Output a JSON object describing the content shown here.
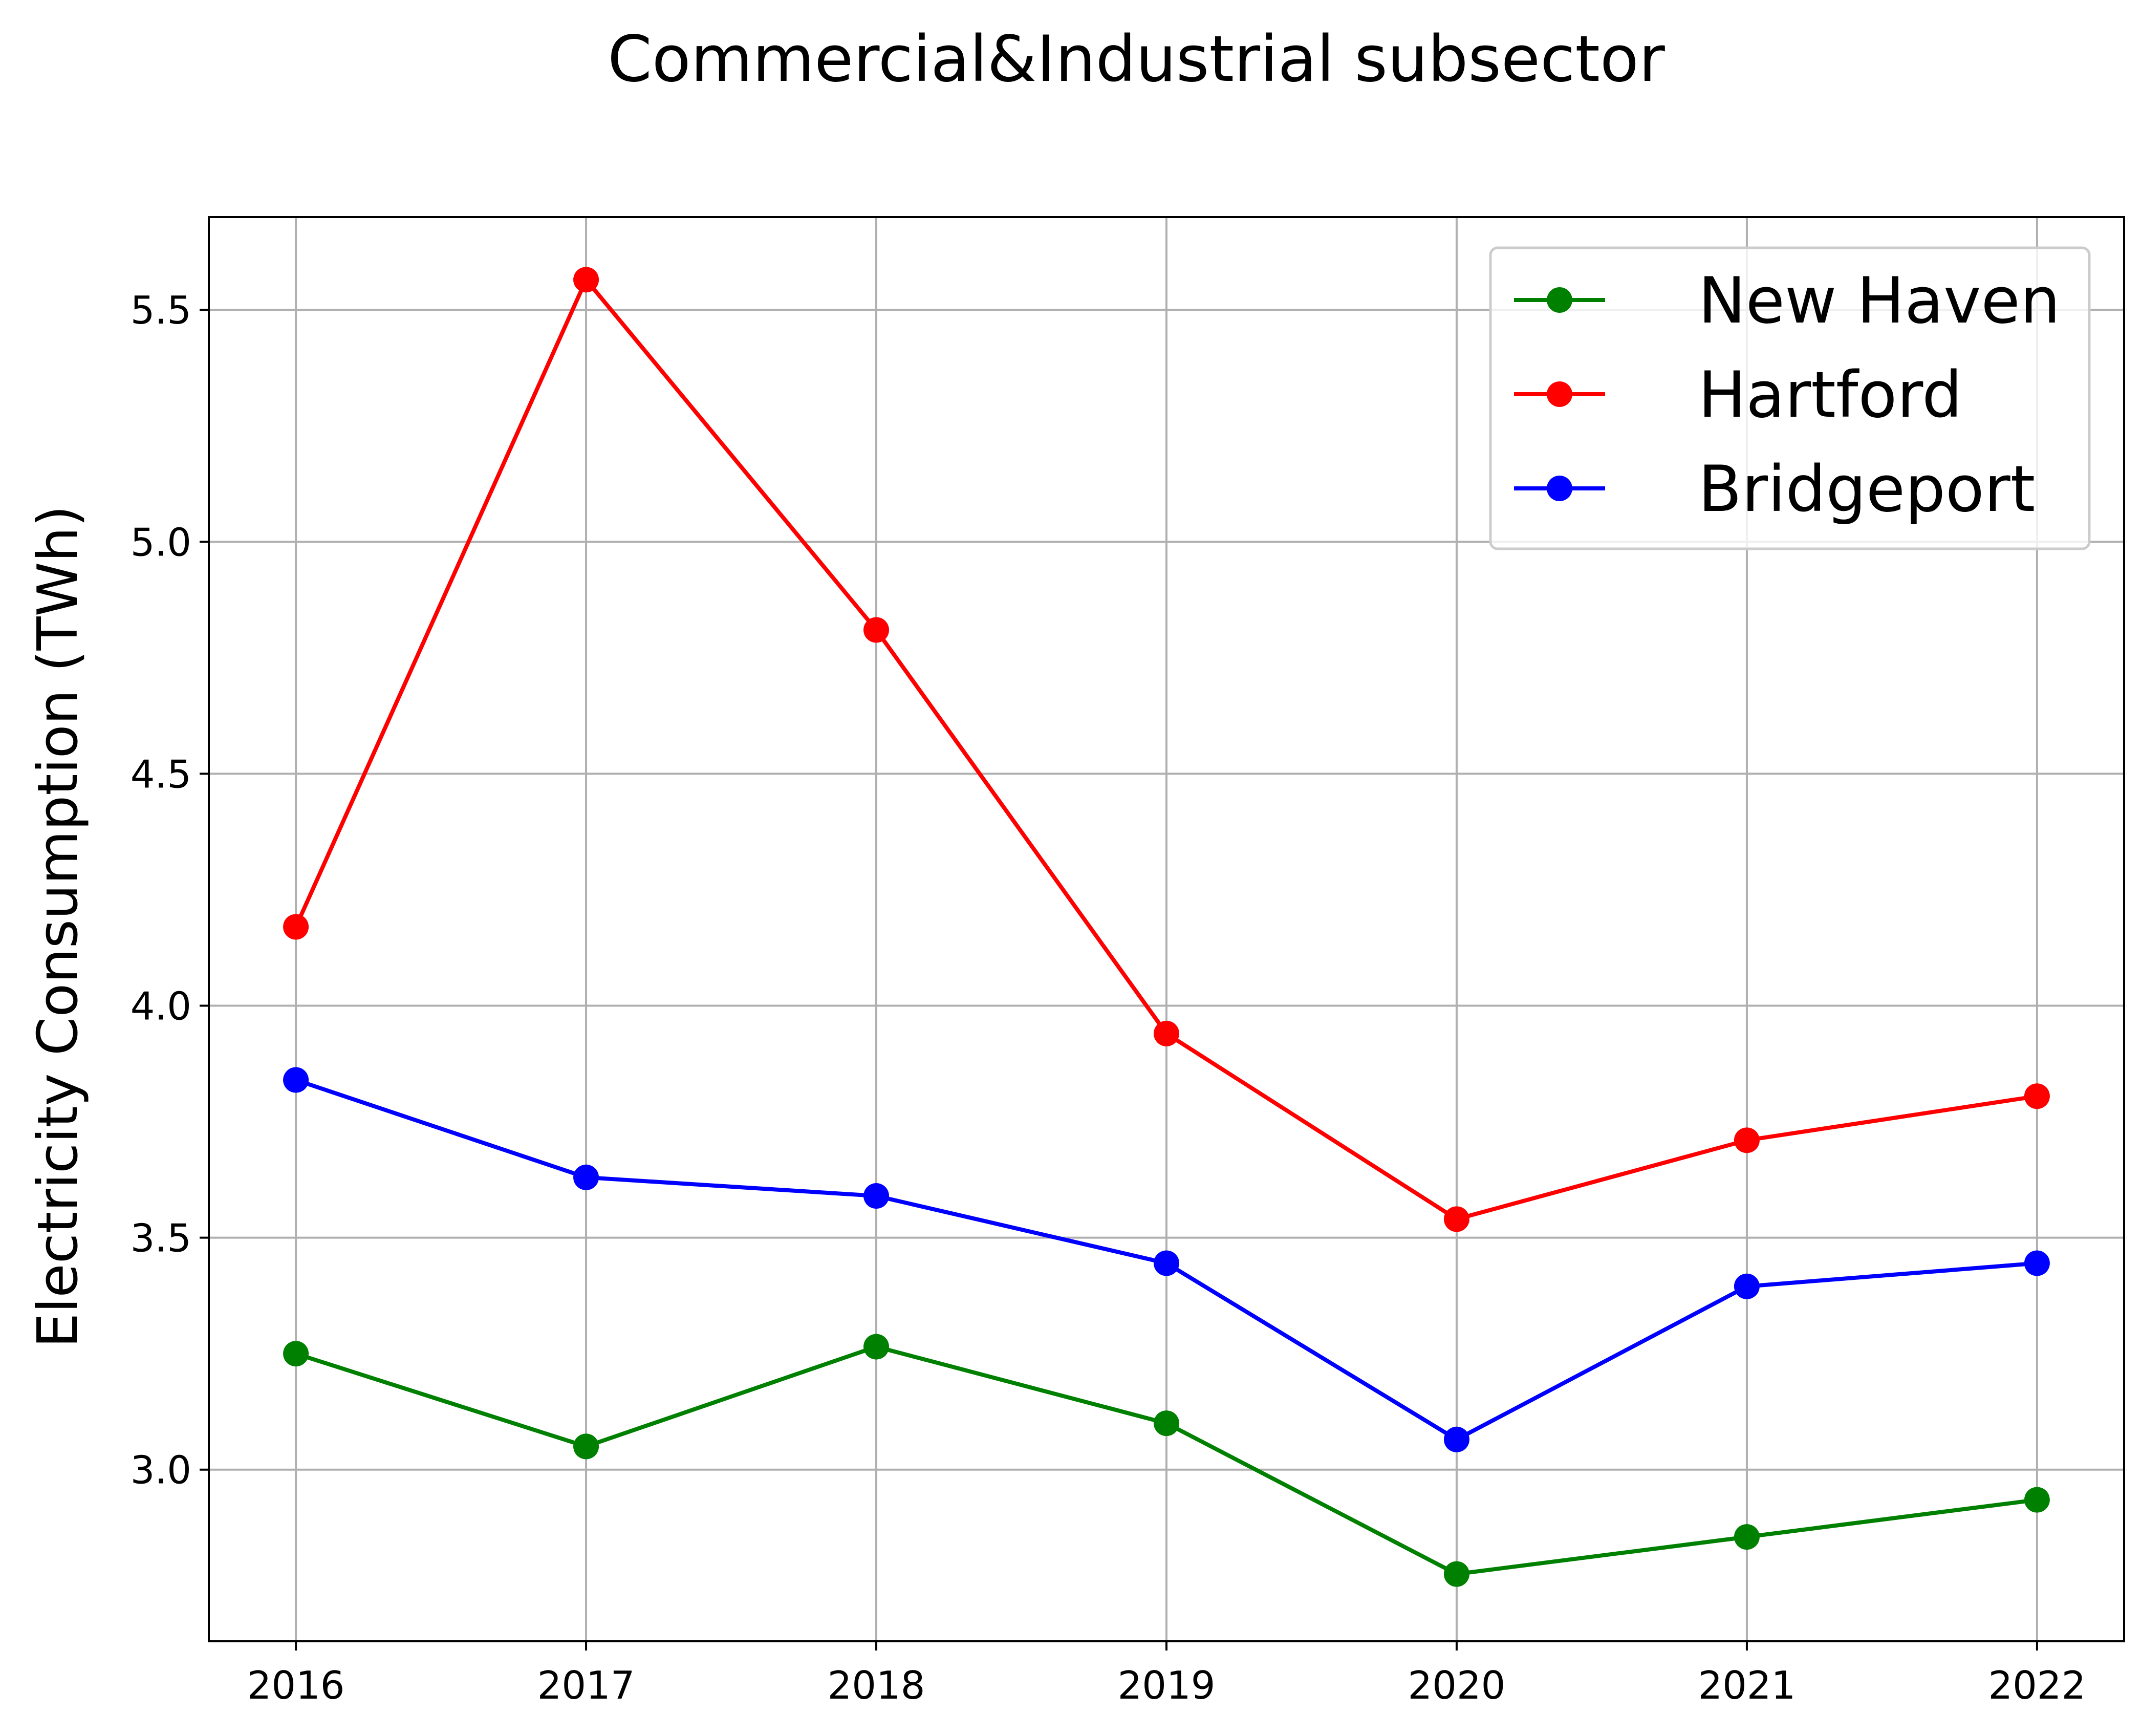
{
  "chart_data": {
    "type": "line",
    "title": "Commercial&Industrial subsector",
    "xlabel": "",
    "ylabel": "Electricity Consumption (TWh)",
    "categories": [
      "2016",
      "2017",
      "2018",
      "2019",
      "2020",
      "2021",
      "2022"
    ],
    "x": [
      2016,
      2017,
      2018,
      2019,
      2020,
      2021,
      2022
    ],
    "xlim": [
      2015.7,
      2022.3
    ],
    "ylim": [
      2.63,
      5.7
    ],
    "yticks": [
      3.0,
      3.5,
      4.0,
      4.5,
      5.0,
      5.5
    ],
    "ytick_labels": [
      "3.0",
      "3.5",
      "4.0",
      "4.5",
      "5.0",
      "5.5"
    ],
    "grid": true,
    "legend_position": "upper right",
    "series": [
      {
        "name": "New Haven",
        "color": "#008000",
        "marker": "circle",
        "values": [
          3.25,
          3.05,
          3.265,
          3.1,
          2.775,
          2.855,
          2.935
        ]
      },
      {
        "name": "Hartford",
        "color": "#ff0000",
        "marker": "circle",
        "values": [
          4.17,
          5.565,
          4.81,
          3.94,
          3.54,
          3.71,
          3.805
        ]
      },
      {
        "name": "Bridgeport",
        "color": "#0000ff",
        "marker": "circle",
        "values": [
          3.84,
          3.63,
          3.59,
          3.445,
          3.065,
          3.395,
          3.445
        ]
      }
    ]
  }
}
